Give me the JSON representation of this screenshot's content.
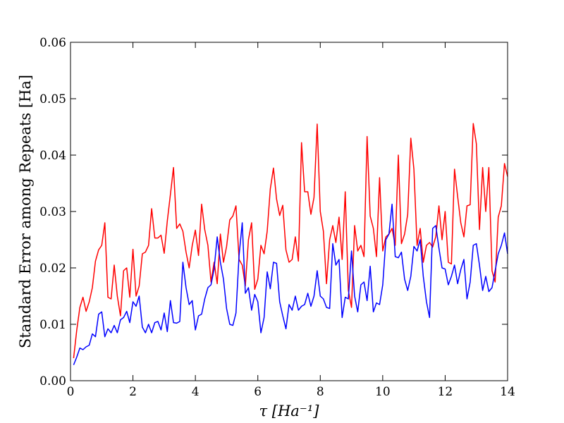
{
  "chart_data": {
    "type": "line",
    "title": "",
    "xlabel": "τ [Ha⁻¹]",
    "ylabel": "Standard Error among Repeats  [Ha]",
    "xlim": [
      0,
      14
    ],
    "ylim": [
      0,
      0.06
    ],
    "xticks": [
      0,
      2,
      4,
      6,
      8,
      10,
      12,
      14
    ],
    "xtick_labels": [
      "0",
      "2",
      "4",
      "6",
      "8",
      "10",
      "12",
      "14"
    ],
    "yticks": [
      0,
      0.01,
      0.02,
      0.03,
      0.04,
      0.05,
      0.06
    ],
    "ytick_labels": [
      "0.00",
      "0.01",
      "0.02",
      "0.03",
      "0.04",
      "0.05",
      "0.06"
    ],
    "grid": false,
    "legend": "none",
    "series": [
      {
        "color": "#ff0000",
        "x": [
          0.1,
          0.2,
          0.3,
          0.4,
          0.5,
          0.6,
          0.7,
          0.8,
          0.9,
          1.0,
          1.1,
          1.2,
          1.3,
          1.4,
          1.5,
          1.6,
          1.7,
          1.8,
          1.9,
          2.0,
          2.1,
          2.2,
          2.3,
          2.4,
          2.5,
          2.6,
          2.7,
          2.8,
          2.9,
          3.0,
          3.1,
          3.2,
          3.3,
          3.4,
          3.5,
          3.6,
          3.7,
          3.8,
          3.9,
          4.0,
          4.1,
          4.2,
          4.3,
          4.4,
          4.5,
          4.6,
          4.7,
          4.8,
          4.9,
          5.0,
          5.1,
          5.2,
          5.3,
          5.4,
          5.5,
          5.6,
          5.7,
          5.8,
          5.9,
          6.0,
          6.1,
          6.2,
          6.3,
          6.4,
          6.5,
          6.6,
          6.7,
          6.8,
          6.9,
          7.0,
          7.1,
          7.2,
          7.3,
          7.4,
          7.5,
          7.6,
          7.7,
          7.8,
          7.9,
          8.0,
          8.1,
          8.2,
          8.3,
          8.4,
          8.5,
          8.6,
          8.7,
          8.8,
          8.9,
          9.0,
          9.1,
          9.2,
          9.3,
          9.4,
          9.5,
          9.6,
          9.7,
          9.8,
          9.9,
          10.0,
          10.1,
          10.2,
          10.3,
          10.4,
          10.5,
          10.6,
          10.7,
          10.8,
          10.9,
          11.0,
          11.1,
          11.2,
          11.3,
          11.4,
          11.5,
          11.6,
          11.7,
          11.8,
          11.9,
          12.0,
          12.1,
          12.2,
          12.3,
          12.4,
          12.5,
          12.6,
          12.7,
          12.8,
          12.9,
          13.0,
          13.1,
          13.2,
          13.3,
          13.4,
          13.5,
          13.6,
          13.7,
          13.8,
          13.9,
          14.0
        ],
        "y": [
          0.004,
          0.009,
          0.013,
          0.0148,
          0.0123,
          0.014,
          0.0165,
          0.0212,
          0.0232,
          0.024,
          0.028,
          0.0148,
          0.0145,
          0.0205,
          0.015,
          0.0115,
          0.0195,
          0.02,
          0.0148,
          0.0233,
          0.015,
          0.0168,
          0.0225,
          0.0228,
          0.024,
          0.0305,
          0.0253,
          0.0253,
          0.0258,
          0.0226,
          0.0283,
          0.033,
          0.0378,
          0.027,
          0.0278,
          0.0265,
          0.0228,
          0.02,
          0.024,
          0.0267,
          0.0222,
          0.0313,
          0.0268,
          0.024,
          0.0175,
          0.021,
          0.0172,
          0.026,
          0.021,
          0.0238,
          0.0285,
          0.0292,
          0.031,
          0.0215,
          0.0205,
          0.0168,
          0.025,
          0.028,
          0.0162,
          0.018,
          0.024,
          0.0225,
          0.0265,
          0.034,
          0.0377,
          0.0322,
          0.0293,
          0.0311,
          0.0232,
          0.021,
          0.0215,
          0.0255,
          0.0212,
          0.0422,
          0.0335,
          0.0335,
          0.0295,
          0.0325,
          0.0455,
          0.03,
          0.0265,
          0.0172,
          0.025,
          0.0275,
          0.0245,
          0.029,
          0.0215,
          0.0335,
          0.016,
          0.013,
          0.0275,
          0.023,
          0.024,
          0.022,
          0.0433,
          0.0292,
          0.027,
          0.022,
          0.036,
          0.023,
          0.0255,
          0.026,
          0.027,
          0.024,
          0.04,
          0.0243,
          0.026,
          0.0295,
          0.043,
          0.0375,
          0.024,
          0.027,
          0.021,
          0.024,
          0.0245,
          0.0237,
          0.0255,
          0.031,
          0.025,
          0.03,
          0.021,
          0.0207,
          0.0375,
          0.0327,
          0.028,
          0.0255,
          0.031,
          0.0312,
          0.0456,
          0.042,
          0.0268,
          0.0378,
          0.03,
          0.0378,
          0.0195,
          0.0175,
          0.029,
          0.031,
          0.0385,
          0.0362
        ]
      },
      {
        "color": "#0000ff",
        "x": [
          0.1,
          0.2,
          0.3,
          0.4,
          0.5,
          0.6,
          0.7,
          0.8,
          0.9,
          1.0,
          1.1,
          1.2,
          1.3,
          1.4,
          1.5,
          1.6,
          1.7,
          1.8,
          1.9,
          2.0,
          2.1,
          2.2,
          2.3,
          2.4,
          2.5,
          2.6,
          2.7,
          2.8,
          2.9,
          3.0,
          3.1,
          3.2,
          3.3,
          3.4,
          3.5,
          3.6,
          3.7,
          3.8,
          3.9,
          4.0,
          4.1,
          4.2,
          4.3,
          4.4,
          4.5,
          4.6,
          4.7,
          4.8,
          4.9,
          5.0,
          5.1,
          5.2,
          5.3,
          5.4,
          5.5,
          5.6,
          5.7,
          5.8,
          5.9,
          6.0,
          6.1,
          6.2,
          6.3,
          6.4,
          6.5,
          6.6,
          6.7,
          6.8,
          6.9,
          7.0,
          7.1,
          7.2,
          7.3,
          7.4,
          7.5,
          7.6,
          7.7,
          7.8,
          7.9,
          8.0,
          8.1,
          8.2,
          8.3,
          8.4,
          8.5,
          8.6,
          8.7,
          8.8,
          8.9,
          9.0,
          9.1,
          9.2,
          9.3,
          9.4,
          9.5,
          9.6,
          9.7,
          9.8,
          9.9,
          10.0,
          10.1,
          10.2,
          10.3,
          10.4,
          10.5,
          10.6,
          10.7,
          10.8,
          10.9,
          11.0,
          11.1,
          11.2,
          11.3,
          11.4,
          11.5,
          11.6,
          11.7,
          11.8,
          11.9,
          12.0,
          12.1,
          12.2,
          12.3,
          12.4,
          12.5,
          12.6,
          12.7,
          12.8,
          12.9,
          13.0,
          13.1,
          13.2,
          13.3,
          13.4,
          13.5,
          13.6,
          13.7,
          13.8,
          13.9,
          14.0
        ],
        "y": [
          0.0028,
          0.0042,
          0.0058,
          0.0055,
          0.006,
          0.0063,
          0.0083,
          0.0078,
          0.0118,
          0.0122,
          0.0078,
          0.0092,
          0.0085,
          0.0098,
          0.0085,
          0.0108,
          0.0112,
          0.0123,
          0.0103,
          0.014,
          0.0132,
          0.015,
          0.0095,
          0.0085,
          0.01,
          0.0085,
          0.0103,
          0.0105,
          0.009,
          0.012,
          0.0087,
          0.0142,
          0.0103,
          0.0102,
          0.0105,
          0.021,
          0.0165,
          0.0135,
          0.0142,
          0.009,
          0.0115,
          0.0118,
          0.0145,
          0.0165,
          0.017,
          0.0198,
          0.0255,
          0.021,
          0.018,
          0.0128,
          0.01,
          0.0098,
          0.012,
          0.0222,
          0.028,
          0.0155,
          0.0165,
          0.0125,
          0.0153,
          0.014,
          0.0085,
          0.0112,
          0.0193,
          0.0163,
          0.021,
          0.0208,
          0.014,
          0.0115,
          0.0092,
          0.0135,
          0.0125,
          0.015,
          0.0125,
          0.0132,
          0.0135,
          0.0155,
          0.0132,
          0.015,
          0.0195,
          0.015,
          0.0145,
          0.013,
          0.0128,
          0.0243,
          0.0205,
          0.0215,
          0.0112,
          0.0148,
          0.0145,
          0.023,
          0.015,
          0.0122,
          0.017,
          0.0175,
          0.0142,
          0.0203,
          0.0122,
          0.0138,
          0.0135,
          0.017,
          0.025,
          0.026,
          0.0313,
          0.022,
          0.0218,
          0.0228,
          0.018,
          0.016,
          0.0185,
          0.0238,
          0.023,
          0.025,
          0.0185,
          0.014,
          0.0112,
          0.027,
          0.0275,
          0.0235,
          0.02,
          0.0198,
          0.017,
          0.0185,
          0.0205,
          0.0172,
          0.0197,
          0.0215,
          0.0145,
          0.0175,
          0.024,
          0.0243,
          0.0205,
          0.016,
          0.0185,
          0.0158,
          0.0165,
          0.0195,
          0.0225,
          0.024,
          0.0262,
          0.0225
        ]
      }
    ]
  }
}
